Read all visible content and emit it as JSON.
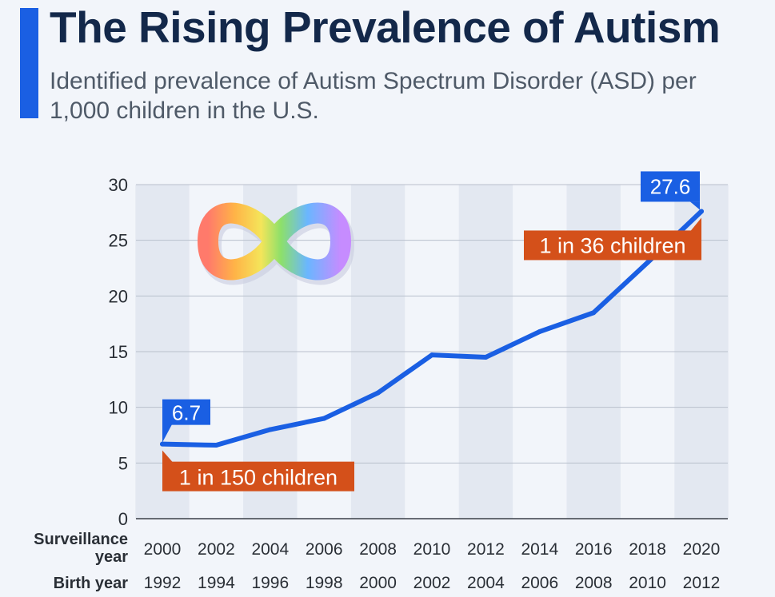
{
  "header": {
    "title": "The Rising Prevalence of Autism",
    "subtitle": "Identified prevalence of Autism Spectrum Disorder (ASD) per 1,000 children in the U.S."
  },
  "colors": {
    "accent": "#1a5fe3",
    "line": "#1a5fe3",
    "note": "#d4501a",
    "title": "#13284a"
  },
  "icons": [
    "rainbow-infinity-icon"
  ],
  "chart_data": {
    "type": "line",
    "title": "The Rising Prevalence of Autism",
    "subtitle": "Identified prevalence of Autism Spectrum Disorder (ASD) per 1,000 children in the U.S.",
    "x_row_labels": [
      "Surveillance year",
      "Birth year"
    ],
    "surveillance_years": [
      "2000",
      "2002",
      "2004",
      "2006",
      "2008",
      "2010",
      "2012",
      "2014",
      "2016",
      "2018",
      "2020"
    ],
    "birth_years": [
      "1992",
      "1994",
      "1996",
      "1998",
      "2000",
      "2002",
      "2004",
      "2006",
      "2008",
      "2010",
      "2012"
    ],
    "series": [
      {
        "name": "ASD prevalence per 1,000 children",
        "values": [
          6.7,
          6.6,
          8.0,
          9.0,
          11.3,
          14.7,
          14.5,
          16.8,
          18.5,
          23.0,
          27.6
        ]
      }
    ],
    "ylim": [
      0,
      30
    ],
    "yticks": [
      0,
      5,
      10,
      15,
      20,
      25,
      30
    ],
    "grid": true,
    "annotations": {
      "start_value": "6.7",
      "end_value": "27.6",
      "start_note": "1 in 150 children",
      "end_note": "1 in 36 children"
    }
  }
}
